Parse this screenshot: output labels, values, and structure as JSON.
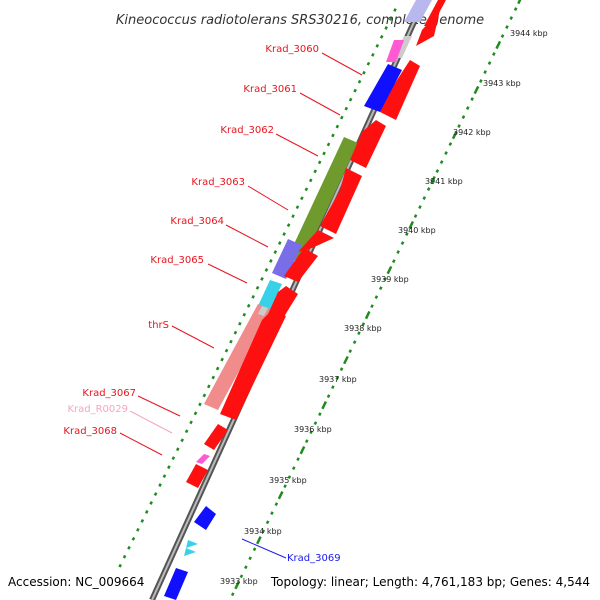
{
  "title": "Kineococcus radiotolerans SRS30216, complete genome",
  "footer": {
    "accession": "Accession: NC_009664",
    "summary": "Topology: linear; Length: 4,761,183 bp; Genes: 4,544"
  },
  "scale_labels": [
    "3944 kbp",
    "3943 kbp",
    "3942 kbp",
    "3941 kbp",
    "3940 kbp",
    "3939 kbp",
    "3938 kbp",
    "3937 kbp",
    "3936 kbp",
    "3935 kbp",
    "3934 kbp",
    "3933 kbp"
  ],
  "gene_labels": [
    {
      "name": "Krad_3060",
      "color": "#e8141e"
    },
    {
      "name": "Krad_3061",
      "color": "#e8141e"
    },
    {
      "name": "Krad_3062",
      "color": "#e8141e"
    },
    {
      "name": "Krad_3063",
      "color": "#e8141e"
    },
    {
      "name": "Krad_3064",
      "color": "#e8141e"
    },
    {
      "name": "Krad_3065",
      "color": "#e8141e"
    },
    {
      "name": "thrS",
      "color": "#e8141e"
    },
    {
      "name": "Krad_3067",
      "color": "#e8141e"
    },
    {
      "name": "Krad_R0029",
      "color": "#f4a6c0"
    },
    {
      "name": "Krad_3068",
      "color": "#e8141e"
    },
    {
      "name": "Krad_3069",
      "color": "#1a1aee"
    }
  ],
  "colors": {
    "cds_forward": "#ff1010",
    "cds_reverse": "#1010ff",
    "rrna": "#ff5ad4",
    "function_green": "#6e9a2e",
    "function_purple": "#7a6ee8",
    "function_cyan": "#38d2e8",
    "function_pink": "#f08c8c",
    "function_gray": "#cccccc",
    "scale_ticks": "#1e8c1e",
    "backbone": "#888888"
  }
}
